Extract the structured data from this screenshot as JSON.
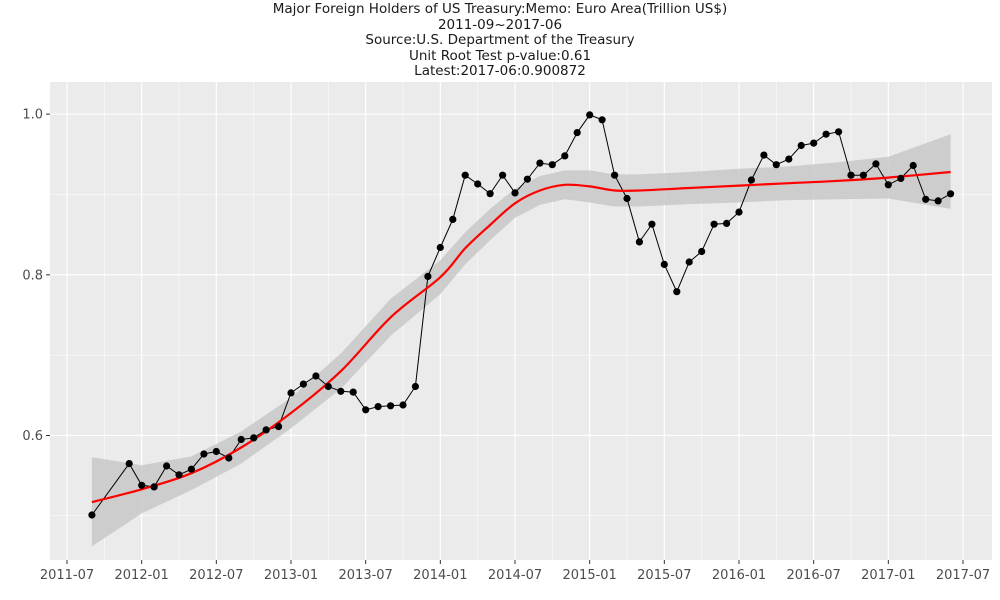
{
  "chart_data": {
    "type": "line",
    "title": "Major Foreign Holders of US Treasury:Memo: Euro Area(Trillion US$)",
    "subtitle_lines": [
      "2011-09~2017-06",
      "Source:U.S. Department of the Treasury",
      "Unit Root Test p-value:0.61",
      "Latest:2017-06:0.900872"
    ],
    "xlabel": "",
    "ylabel": "",
    "x_ticks": [
      "2011-07",
      "2012-01",
      "2012-07",
      "2013-01",
      "2013-07",
      "2014-01",
      "2014-07",
      "2015-01",
      "2015-07",
      "2016-01",
      "2016-07",
      "2017-01",
      "2017-07"
    ],
    "y_ticks": [
      "0.6",
      "0.8",
      "1.0"
    ],
    "ylim": [
      0.445,
      1.04
    ],
    "grid": true,
    "legend": "none",
    "colors": {
      "panel": "#ebebeb",
      "grid": "#ffffff",
      "series": "#000000",
      "smooth": "#ff0000",
      "band": "#c8c8c8"
    },
    "series": [
      {
        "kind": "observed",
        "x": [
          "2011-09",
          "2011-12",
          "2012-01",
          "2012-02",
          "2012-03",
          "2012-04",
          "2012-05",
          "2012-06",
          "2012-07",
          "2012-08",
          "2012-09",
          "2012-10",
          "2012-11",
          "2012-12",
          "2013-01",
          "2013-02",
          "2013-03",
          "2013-04",
          "2013-05",
          "2013-06",
          "2013-07",
          "2013-08",
          "2013-09",
          "2013-10",
          "2013-11",
          "2013-12",
          "2014-01",
          "2014-02",
          "2014-03",
          "2014-04",
          "2014-05",
          "2014-06",
          "2014-07",
          "2014-08",
          "2014-09",
          "2014-10",
          "2014-11",
          "2014-12",
          "2015-01",
          "2015-02",
          "2015-03",
          "2015-04",
          "2015-05",
          "2015-06",
          "2015-07",
          "2015-08",
          "2015-09",
          "2015-10",
          "2015-11",
          "2015-12",
          "2016-01",
          "2016-02",
          "2016-03",
          "2016-04",
          "2016-05",
          "2016-06",
          "2016-07",
          "2016-08",
          "2016-09",
          "2016-10",
          "2016-11",
          "2016-12",
          "2017-01",
          "2017-02",
          "2017-03",
          "2017-04",
          "2017-05",
          "2017-06"
        ],
        "values": [
          0.501,
          0.565,
          0.538,
          0.536,
          0.562,
          0.551,
          0.558,
          0.577,
          0.58,
          0.572,
          0.595,
          0.597,
          0.607,
          0.611,
          0.653,
          0.664,
          0.674,
          0.661,
          0.655,
          0.654,
          0.632,
          0.636,
          0.637,
          0.638,
          0.661,
          0.798,
          0.834,
          0.869,
          0.924,
          0.913,
          0.901,
          0.924,
          0.902,
          0.919,
          0.939,
          0.937,
          0.948,
          0.977,
          0.999,
          0.993,
          0.924,
          0.895,
          0.841,
          0.863,
          0.813,
          0.779,
          0.816,
          0.829,
          0.863,
          0.864,
          0.878,
          0.918,
          0.949,
          0.937,
          0.944,
          0.961,
          0.964,
          0.975,
          0.978,
          0.924,
          0.924,
          0.938,
          0.912,
          0.92,
          0.936,
          0.894,
          0.892,
          0.900872
        ]
      },
      {
        "kind": "smooth",
        "x": [
          "2011-09",
          "2012-01",
          "2012-05",
          "2012-09",
          "2013-01",
          "2013-05",
          "2013-09",
          "2014-01",
          "2014-03",
          "2014-05",
          "2014-07",
          "2014-09",
          "2014-11",
          "2015-01",
          "2015-03",
          "2015-05",
          "2015-09",
          "2016-01",
          "2016-05",
          "2016-09",
          "2017-01",
          "2017-06"
        ],
        "values": [
          0.517,
          0.533,
          0.553,
          0.585,
          0.628,
          0.68,
          0.747,
          0.797,
          0.833,
          0.862,
          0.889,
          0.905,
          0.912,
          0.91,
          0.905,
          0.905,
          0.908,
          0.911,
          0.914,
          0.917,
          0.921,
          0.928
        ],
        "band_upper": [
          0.573,
          0.563,
          0.574,
          0.605,
          0.647,
          0.702,
          0.77,
          0.818,
          0.853,
          0.882,
          0.907,
          0.923,
          0.93,
          0.93,
          0.925,
          0.925,
          0.928,
          0.932,
          0.935,
          0.94,
          0.947,
          0.975
        ],
        "band_lower": [
          0.462,
          0.503,
          0.532,
          0.565,
          0.609,
          0.658,
          0.724,
          0.776,
          0.813,
          0.843,
          0.871,
          0.887,
          0.894,
          0.89,
          0.885,
          0.885,
          0.888,
          0.89,
          0.893,
          0.894,
          0.895,
          0.882
        ]
      }
    ]
  }
}
